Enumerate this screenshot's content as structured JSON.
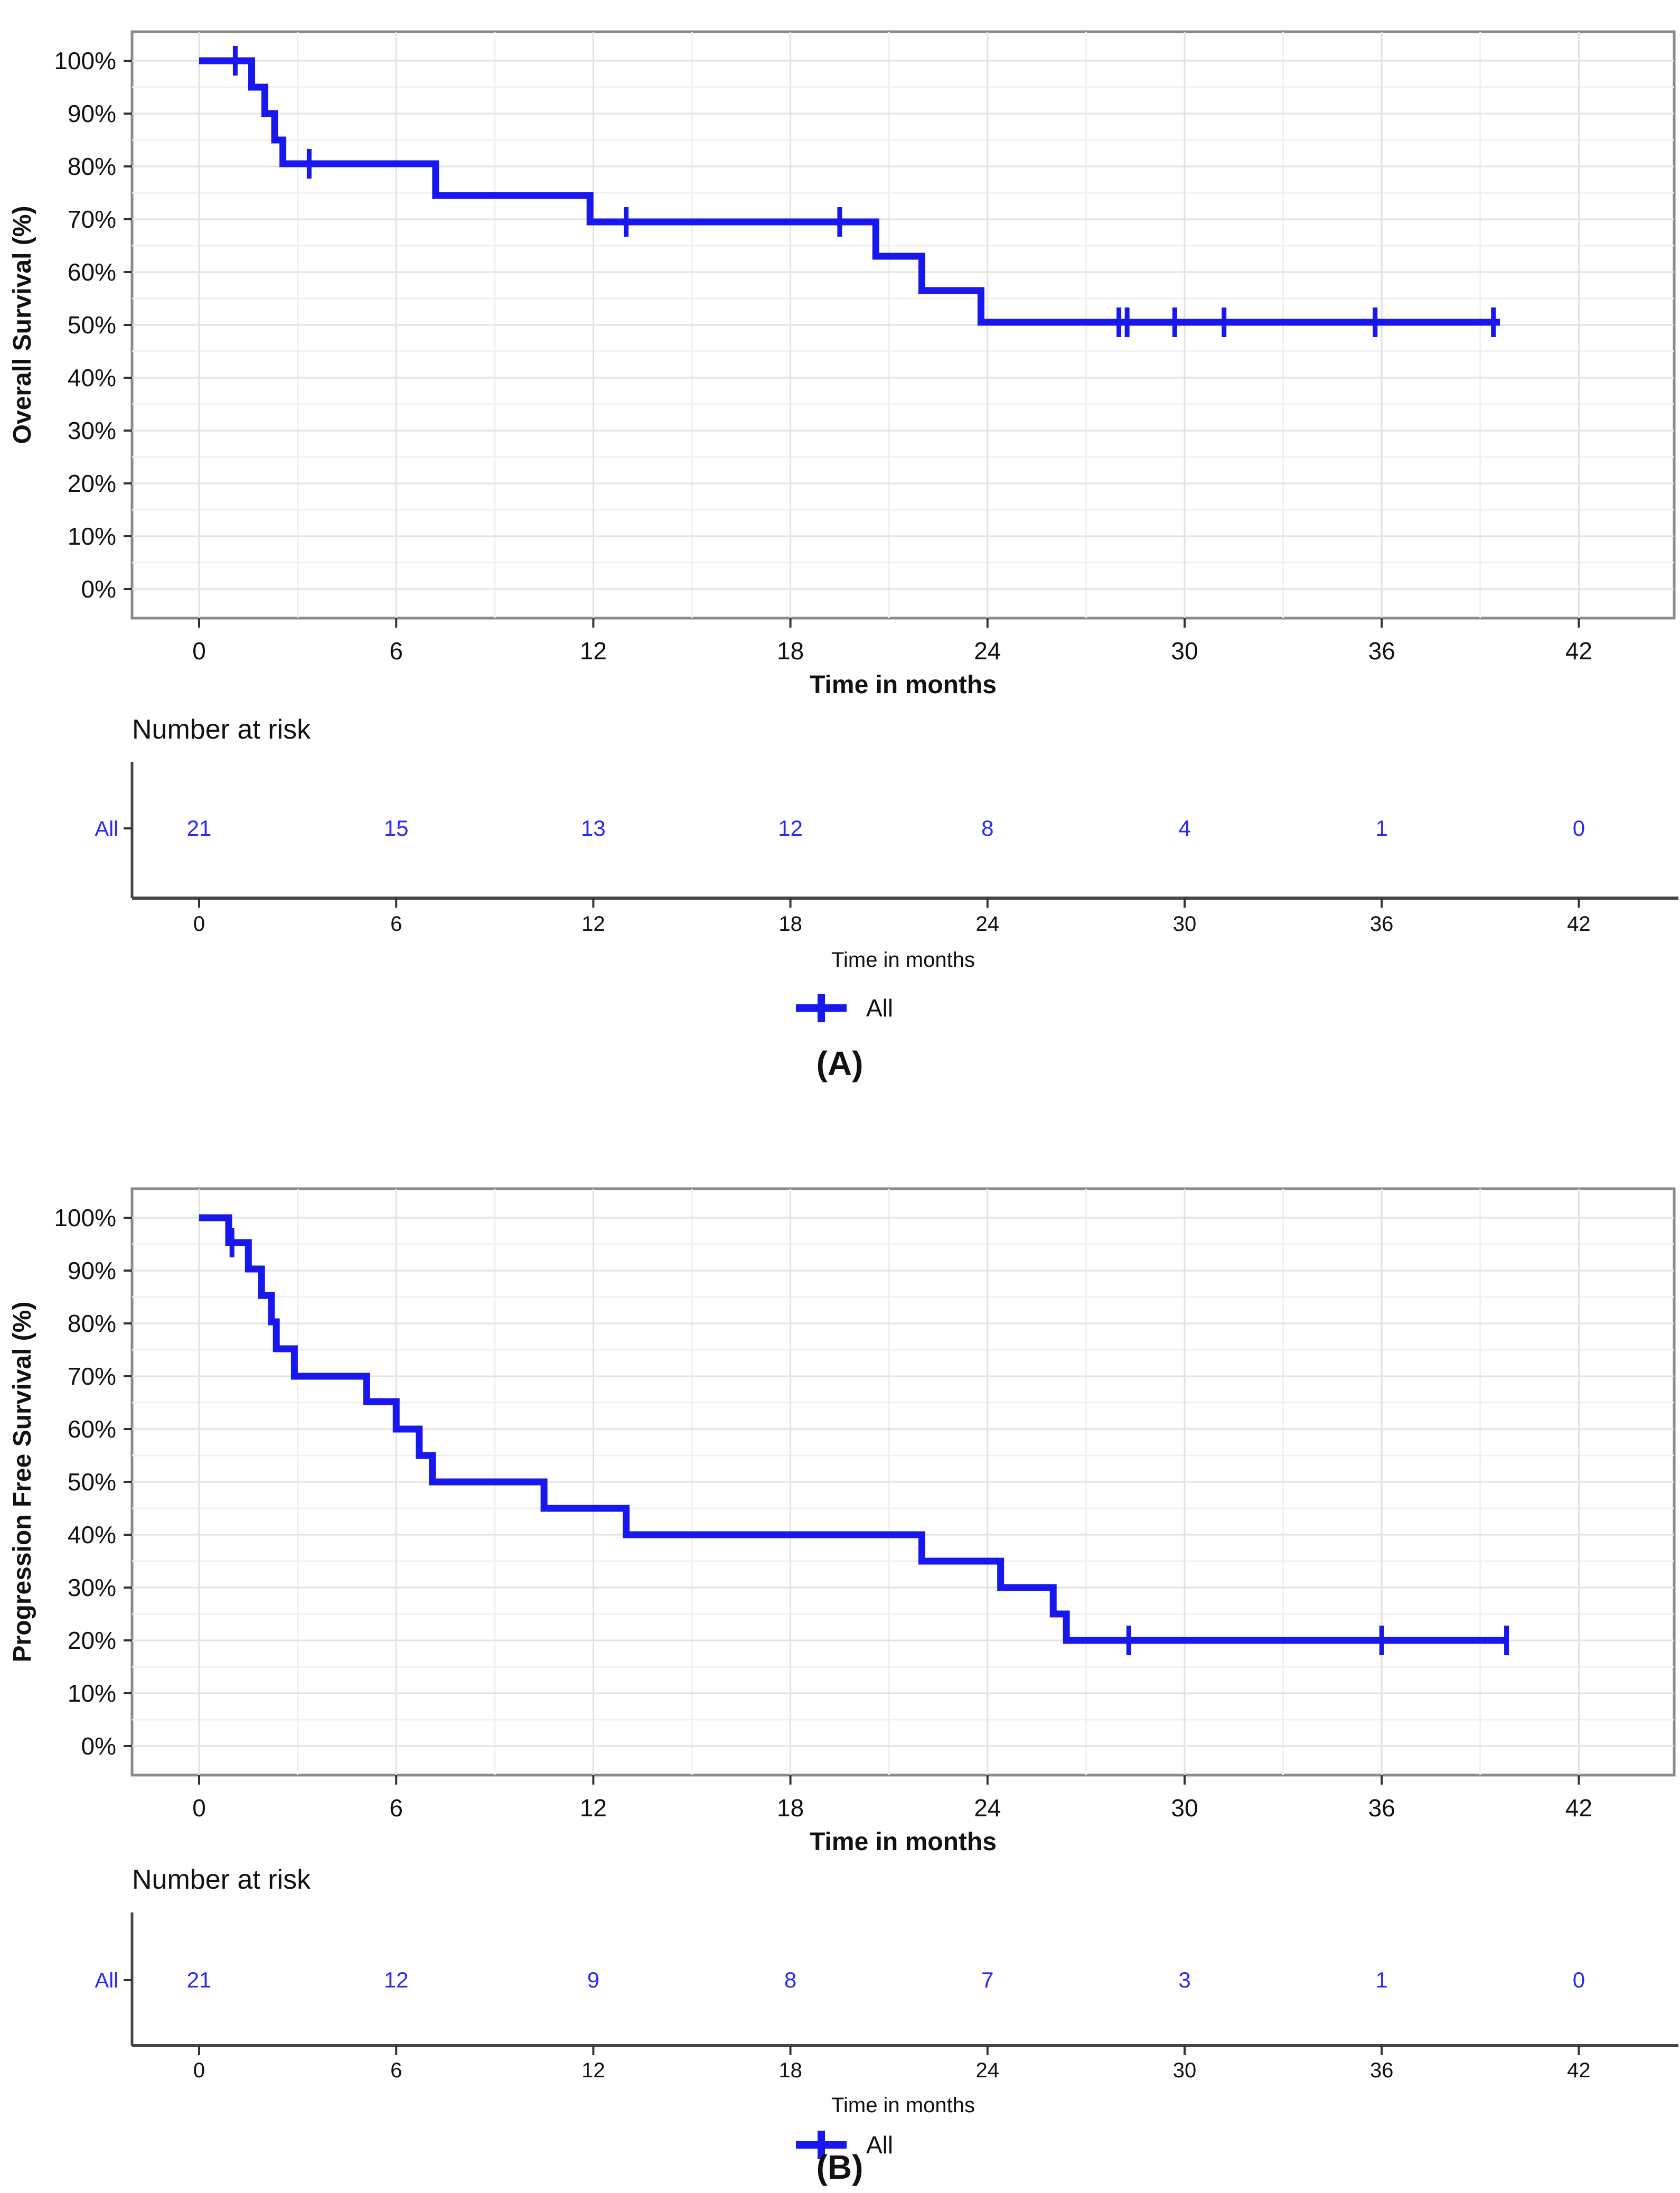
{
  "page": {
    "background": "#ffffff"
  },
  "styles": {
    "curve_color": "#1717ee",
    "risk_number_color": "#2a2af0",
    "text_color": "#111111",
    "panel_border_color": "#8a8a8a",
    "grid_major_color": "#e2e2e2",
    "grid_minor_color": "#f0f0f0",
    "axis_line_color": "#454545",
    "tick_color": "#333333"
  },
  "chart_data": [
    {
      "type": "line",
      "subtype": "kaplan_meier_step",
      "panel_letter": "(A)",
      "ylabel": "Overall Survival (%)",
      "xlabel": "Time in months",
      "risk_section_title": "Number at risk",
      "risk_axis_xlabel": "Time in months",
      "legend_position": "bottom",
      "legend": [
        {
          "label": "All",
          "marker": "plus-tick",
          "color": "#1717ee"
        }
      ],
      "xlim": [
        -2,
        45
      ],
      "ylim": [
        -5,
        105
      ],
      "grid": true,
      "x_tick_values": [
        0,
        6,
        12,
        18,
        24,
        30,
        36,
        42
      ],
      "x_tick_labels": [
        "0",
        "6",
        "12",
        "18",
        "24",
        "30",
        "36",
        "42"
      ],
      "x_minor_values": [
        3,
        9,
        15,
        21,
        27,
        33,
        39
      ],
      "y_tick_values": [
        0,
        10,
        20,
        30,
        40,
        50,
        60,
        70,
        80,
        90,
        100
      ],
      "y_tick_labels": [
        "0%",
        "10%",
        "20%",
        "30%",
        "40%",
        "50%",
        "60%",
        "70%",
        "80%",
        "90%",
        "100%"
      ],
      "y_minor_values": [
        5,
        15,
        25,
        35,
        45,
        55,
        65,
        75,
        85,
        95
      ],
      "series": [
        {
          "name": "All",
          "color": "#1717ee",
          "steps": [
            [
              0,
              100
            ],
            [
              1.6,
              95
            ],
            [
              2.0,
              90
            ],
            [
              2.3,
              85
            ],
            [
              2.55,
              80.5
            ],
            [
              7.2,
              74.5
            ],
            [
              11.9,
              69.5
            ],
            [
              20.6,
              63
            ],
            [
              22.0,
              56.5
            ],
            [
              23.8,
              50.5
            ]
          ],
          "end_time": 39.6,
          "censor_marks": [
            [
              1.1,
              100
            ],
            [
              3.35,
              80.5
            ],
            [
              13.0,
              69.5
            ],
            [
              19.5,
              69.5
            ],
            [
              28.0,
              50.5
            ],
            [
              28.25,
              50.5
            ],
            [
              29.7,
              50.5
            ],
            [
              31.2,
              50.5
            ],
            [
              35.8,
              50.5
            ],
            [
              39.4,
              50.5
            ]
          ]
        }
      ],
      "number_at_risk": {
        "row_label": "All",
        "times": [
          0,
          6,
          12,
          18,
          24,
          30,
          36,
          42
        ],
        "counts": [
          "21",
          "15",
          "13",
          "12",
          "8",
          "4",
          "1",
          "0"
        ]
      }
    },
    {
      "type": "line",
      "subtype": "kaplan_meier_step",
      "panel_letter": "(B)",
      "ylabel": "Progression Free Survival (%)",
      "xlabel": "Time in months",
      "risk_section_title": "Number at risk",
      "risk_axis_xlabel": "Time in months",
      "legend_position": "bottom",
      "legend": [
        {
          "label": "All",
          "marker": "plus-tick",
          "color": "#1717ee"
        }
      ],
      "xlim": [
        -2,
        45
      ],
      "ylim": [
        -5,
        105
      ],
      "grid": true,
      "x_tick_values": [
        0,
        6,
        12,
        18,
        24,
        30,
        36,
        42
      ],
      "x_tick_labels": [
        "0",
        "6",
        "12",
        "18",
        "24",
        "30",
        "36",
        "42"
      ],
      "x_minor_values": [
        3,
        9,
        15,
        21,
        27,
        33,
        39
      ],
      "y_tick_values": [
        0,
        10,
        20,
        30,
        40,
        50,
        60,
        70,
        80,
        90,
        100
      ],
      "y_tick_labels": [
        "0%",
        "10%",
        "20%",
        "30%",
        "40%",
        "50%",
        "60%",
        "70%",
        "80%",
        "90%",
        "100%"
      ],
      "y_minor_values": [
        5,
        15,
        25,
        35,
        45,
        55,
        65,
        75,
        85,
        95
      ],
      "series": [
        {
          "name": "All",
          "color": "#1717ee",
          "steps": [
            [
              0,
              100
            ],
            [
              0.9,
              95.3
            ],
            [
              1.5,
              90.3
            ],
            [
              1.9,
              85.3
            ],
            [
              2.2,
              80.3
            ],
            [
              2.35,
              75.2
            ],
            [
              2.9,
              70
            ],
            [
              5.1,
              65.2
            ],
            [
              6.0,
              60
            ],
            [
              6.7,
              55
            ],
            [
              7.1,
              50
            ],
            [
              10.5,
              45
            ],
            [
              13.0,
              40
            ],
            [
              22.0,
              35
            ],
            [
              24.4,
              30
            ],
            [
              26.0,
              25
            ],
            [
              26.4,
              20
            ]
          ],
          "end_time": 39.8,
          "censor_marks": [
            [
              1.0,
              95.3
            ],
            [
              28.3,
              20
            ],
            [
              36.0,
              20
            ],
            [
              39.8,
              20
            ]
          ]
        }
      ],
      "number_at_risk": {
        "row_label": "All",
        "times": [
          0,
          6,
          12,
          18,
          24,
          30,
          36,
          42
        ],
        "counts": [
          "21",
          "12",
          "9",
          "8",
          "7",
          "3",
          "1",
          "0"
        ]
      }
    }
  ]
}
